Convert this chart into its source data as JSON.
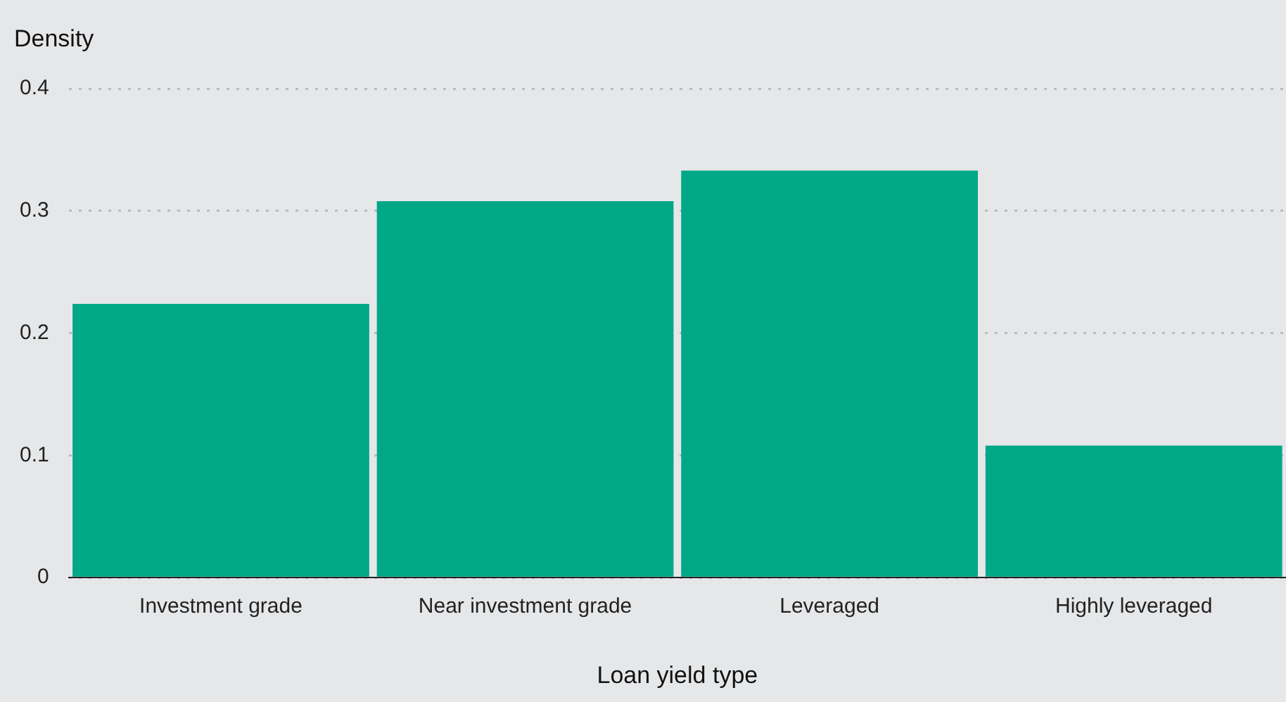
{
  "chart_data": {
    "type": "bar",
    "xlabel": "Loan yield type",
    "ylabel": "Density",
    "categories": [
      "Investment grade",
      "Near investment grade",
      "Leveraged",
      "Highly leveraged"
    ],
    "series": [
      {
        "color": "#00a887",
        "values": [
          0.224,
          0.308,
          0.333,
          0.108
        ]
      }
    ],
    "ylim": [
      0,
      0.4
    ],
    "yticks": [
      0,
      0.1,
      0.2,
      0.3,
      0.4
    ],
    "grid": "y",
    "legend": false
  }
}
